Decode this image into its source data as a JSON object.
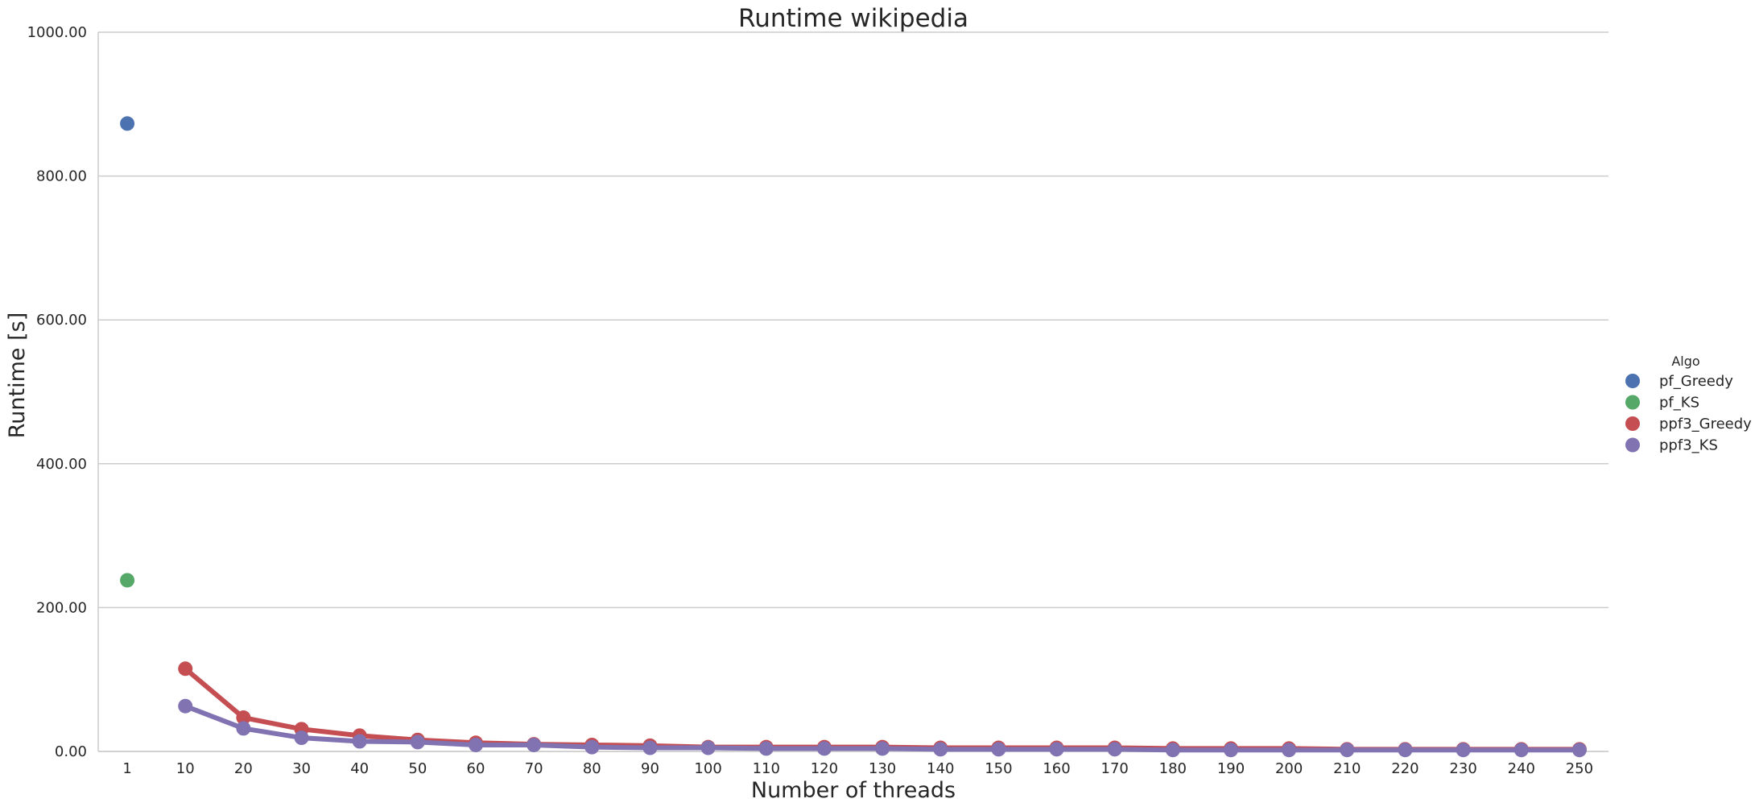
{
  "chart_data": {
    "type": "line",
    "title": "Runtime wikipedia",
    "xlabel": "Number of threads",
    "ylabel": "Runtime [s]",
    "ylim": [
      0,
      1000
    ],
    "yticks": [
      "0.00",
      "200.00",
      "400.00",
      "600.00",
      "800.00",
      "1000.00"
    ],
    "categories": [
      "1",
      "10",
      "20",
      "30",
      "40",
      "50",
      "60",
      "70",
      "80",
      "90",
      "100",
      "110",
      "120",
      "130",
      "140",
      "150",
      "160",
      "170",
      "180",
      "190",
      "200",
      "210",
      "220",
      "230",
      "240",
      "250"
    ],
    "grid": "horizontal",
    "legend": {
      "title": "Algo",
      "placement": "right"
    },
    "series": [
      {
        "name": "pf_Greedy",
        "color": "#4c72b0",
        "values": [
          873,
          null,
          null,
          null,
          null,
          null,
          null,
          null,
          null,
          null,
          null,
          null,
          null,
          null,
          null,
          null,
          null,
          null,
          null,
          null,
          null,
          null,
          null,
          null,
          null,
          null
        ]
      },
      {
        "name": "pf_KS",
        "color": "#55a868",
        "values": [
          238,
          null,
          null,
          null,
          null,
          null,
          null,
          null,
          null,
          null,
          null,
          null,
          null,
          null,
          null,
          null,
          null,
          null,
          null,
          null,
          null,
          null,
          null,
          null,
          null,
          null
        ]
      },
      {
        "name": "ppf3_Greedy",
        "color": "#c44e52",
        "values": [
          null,
          115,
          47,
          31,
          22,
          16,
          12,
          10,
          9,
          8,
          6,
          6,
          6,
          6,
          5,
          5,
          5,
          5,
          4,
          4,
          4,
          3,
          3,
          3,
          3,
          3
        ]
      },
      {
        "name": "ppf3_KS",
        "color": "#8172b2",
        "values": [
          null,
          63,
          32,
          19,
          14,
          13,
          9,
          9,
          6,
          5,
          5,
          4,
          4,
          4,
          3,
          3,
          3,
          3,
          2,
          2,
          2,
          2,
          2,
          2,
          2,
          2
        ]
      }
    ]
  }
}
